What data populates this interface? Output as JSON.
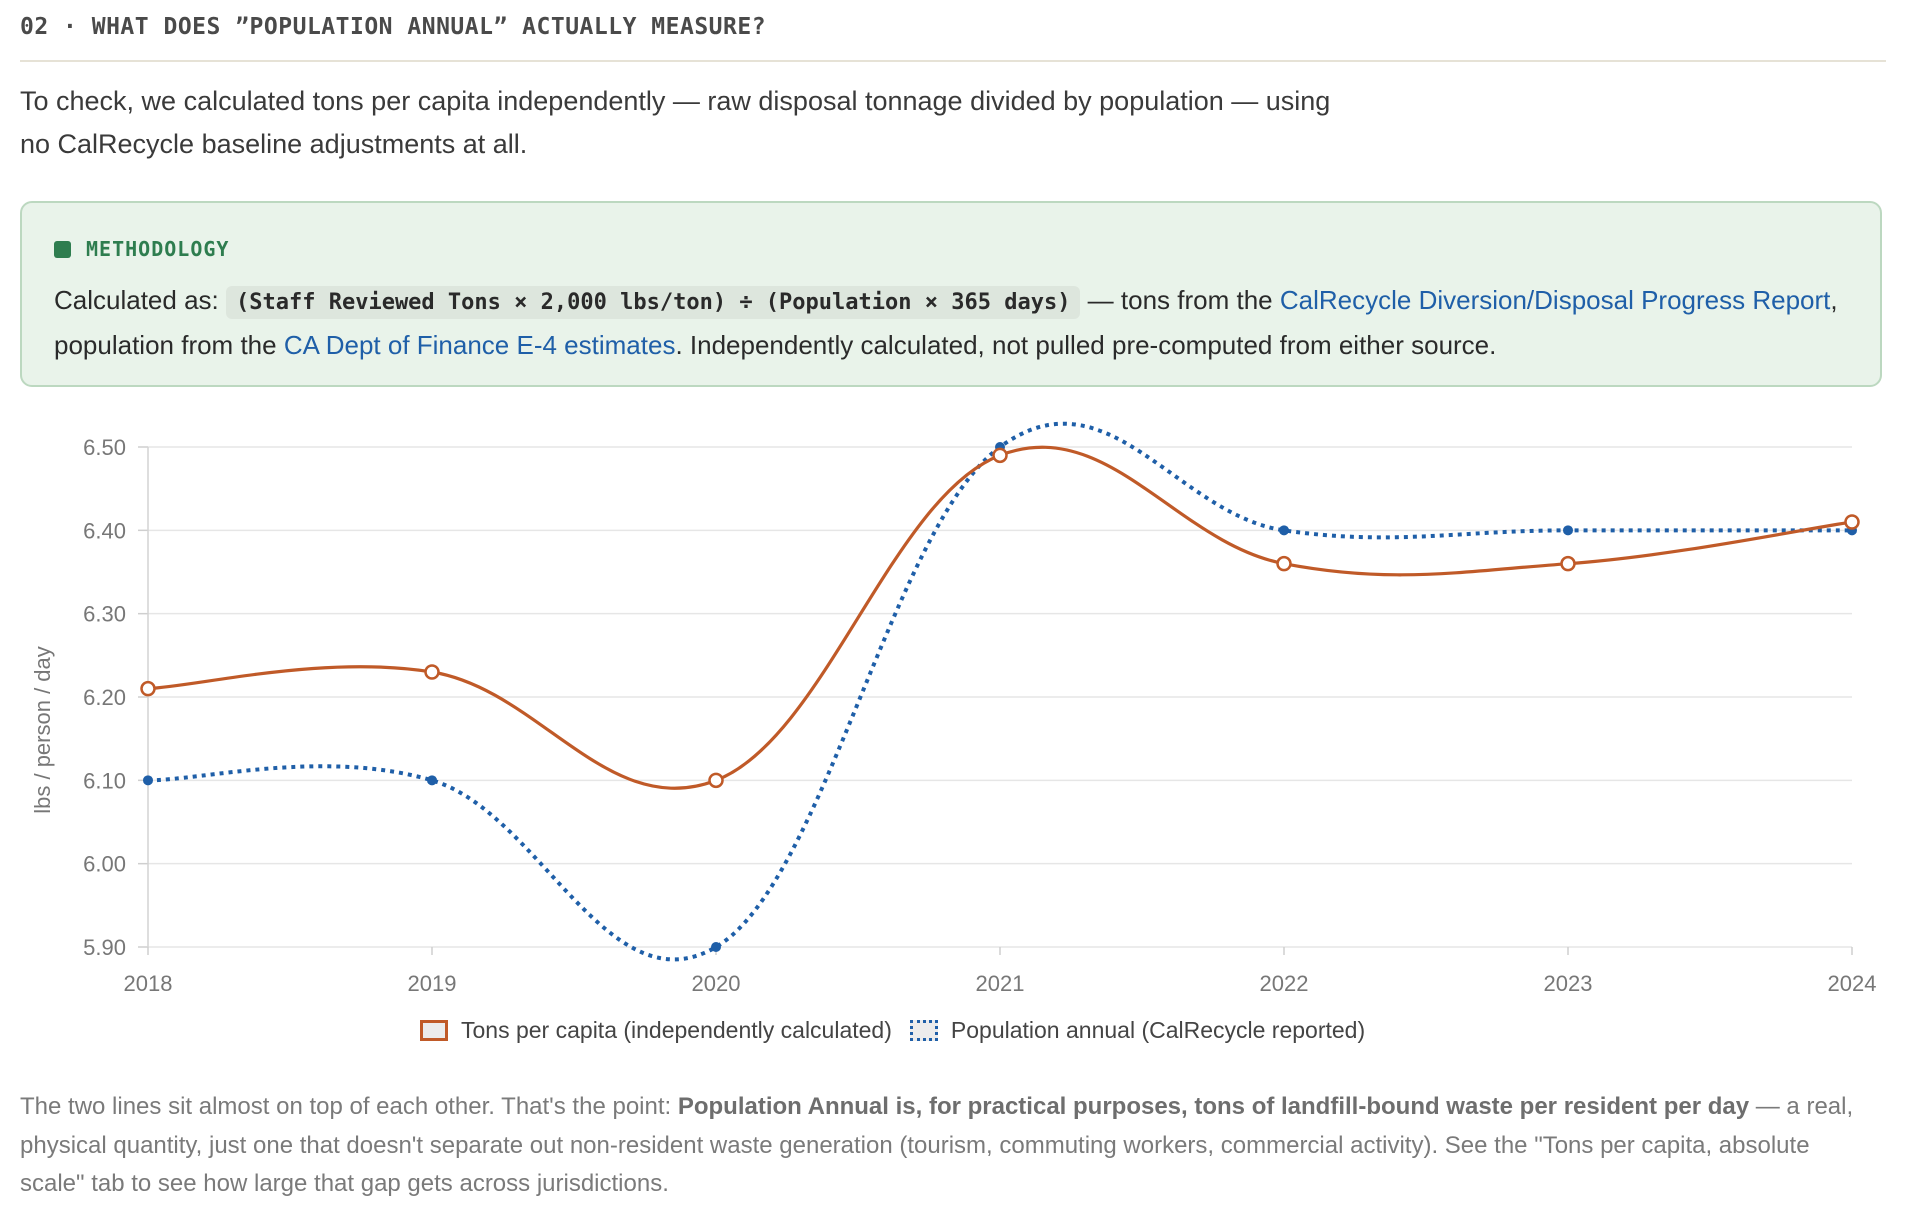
{
  "section": {
    "title": "02 · WHAT DOES ”POPULATION ANNUAL” ACTUALLY MEASURE?"
  },
  "intro": {
    "line1": "To check, we calculated tons per capita independently — raw disposal tonnage divided by population — using",
    "line2": "no CalRecycle baseline adjustments at all."
  },
  "methodology": {
    "label": "METHODOLOGY",
    "prefix": "Calculated as:",
    "formula": "(Staff Reviewed Tons × 2,000 lbs/ton) ÷ (Population × 365 days)",
    "text_before_link1": " — tons from the ",
    "link1": "CalRecycle Diversion/Disposal Progress Report",
    "text_between": ", population from the ",
    "link2": "CA Dept of Finance E-4 estimates",
    "text_after": ". Independently calculated, not pulled pre-computed from either source."
  },
  "caption": {
    "lead": "The two lines sit almost on top of each other. That's the point: ",
    "bold": "Population Annual is, for practical purposes, tons of landfill-bound waste per resident per day",
    "rest": " — a real, physical quantity, just one that doesn't separate out non-resident waste generation (tourism, commuting workers, commercial activity). See the \"Tons per capita, absolute scale\" tab to see how large that gap gets across jurisdictions."
  },
  "colors": {
    "tons_series": "#c05a28",
    "population_series": "#1f5fa8",
    "methodology_accent": "#2e7d4f",
    "link": "#1f5fa8"
  },
  "chart_data": {
    "type": "line",
    "title": "",
    "xlabel": "",
    "ylabel": "lbs / person / day",
    "x": [
      "2018",
      "2019",
      "2020",
      "2021",
      "2022",
      "2023",
      "2024"
    ],
    "ylim": [
      5.9,
      6.5
    ],
    "yticks": [
      "5.90",
      "6.00",
      "6.10",
      "6.20",
      "6.30",
      "6.40",
      "6.50"
    ],
    "grid": true,
    "legend_position": "bottom",
    "series": [
      {
        "name": "Tons per capita (independently calculated)",
        "style": "solid",
        "values": [
          6.21,
          6.23,
          6.1,
          6.49,
          6.36,
          6.36,
          6.41
        ]
      },
      {
        "name": "Population annual (CalRecycle reported)",
        "style": "dotted",
        "values": [
          6.1,
          6.1,
          5.9,
          6.5,
          6.4,
          6.4,
          6.4
        ]
      }
    ]
  }
}
